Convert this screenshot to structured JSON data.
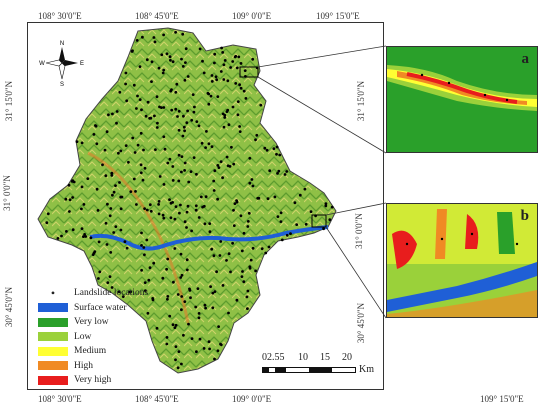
{
  "coordinates": {
    "top": [
      "108° 30'0\"E",
      "108° 45'0\"E",
      "109° 0'0\"E",
      "109° 15'0\"E"
    ],
    "bottom": [
      "108° 30'0\"E",
      "108° 45'0\"E",
      "109° 0'0\"E",
      "109° 15'0\"E"
    ],
    "left": [
      "31° 15'0\"N",
      "31° 0'0\"N",
      "30° 45'0\"N"
    ],
    "right": [
      "31° 15'0\"N",
      "31° 0'0\"N",
      "30° 45'0\"N"
    ]
  },
  "north_arrow": {
    "n": "N",
    "s": "S",
    "e": "E",
    "w": "W"
  },
  "insets": {
    "a": "a",
    "b": "b"
  },
  "legend": {
    "landslide": "Landslide locations",
    "items": [
      {
        "label": "Surface water",
        "color": "#1f5fd6"
      },
      {
        "label": "Very low",
        "color": "#2aa02a"
      },
      {
        "label": "Low",
        "color": "#9ad13a"
      },
      {
        "label": "Medium",
        "color": "#ffff33"
      },
      {
        "label": "High",
        "color": "#f08a24"
      },
      {
        "label": "Very high",
        "color": "#e81d1d"
      }
    ]
  },
  "scale": {
    "ticks": [
      "02.55",
      "10",
      "15",
      "20"
    ],
    "unit": "Km"
  }
}
